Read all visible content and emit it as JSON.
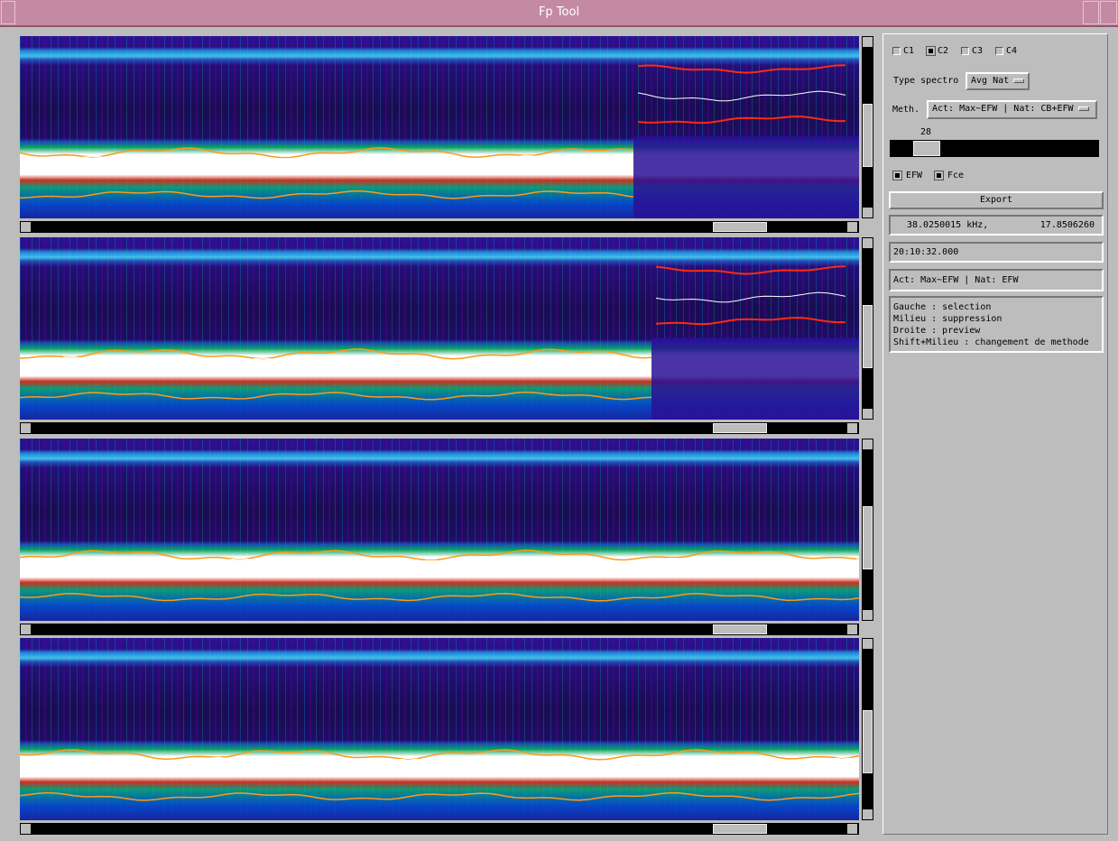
{
  "window": {
    "title": "Fp Tool"
  },
  "channels": [
    {
      "label": "C1",
      "checked": false
    },
    {
      "label": "C2",
      "checked": true
    },
    {
      "label": "C3",
      "checked": false
    },
    {
      "label": "C4",
      "checked": false
    }
  ],
  "type_spectro": {
    "label": "Type spectro",
    "value": "Avg Nat"
  },
  "method": {
    "label": "Meth.",
    "value": "Act: Max~EFW | Nat: CB+EFW"
  },
  "slider": {
    "value": 28
  },
  "toggles": [
    {
      "label": "EFW",
      "checked": true
    },
    {
      "label": "Fce",
      "checked": true
    }
  ],
  "export_button": "Export",
  "cursor": {
    "frequency": "38.0250015 kHz,",
    "amplitude": "17.8506260"
  },
  "time": "20:10:32.000",
  "active_method": "Act: Max~EFW | Nat: EFW",
  "help": [
    "Gauche : selection",
    "Milieu : suppression",
    "Droite : preview",
    "Shift+Milieu : changement de methode"
  ]
}
